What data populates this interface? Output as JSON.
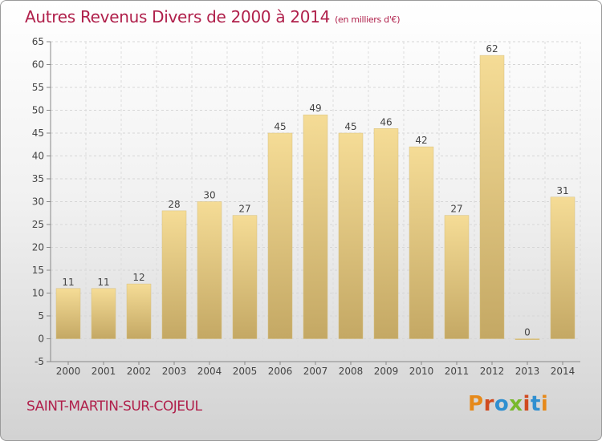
{
  "title": "Autres Revenus Divers de 2000 à 2014",
  "title_unit": "(en milliers d'€)",
  "commune": "SAINT-MARTIN-SUR-COJEUL",
  "logo_text": "Proxiti",
  "colors": {
    "title": "#b0204b",
    "bar_top": "#f5dc96",
    "bar_bottom": "#c4a864",
    "logo": [
      "#e6891a",
      "#d04a1f",
      "#2f8fd0",
      "#79b92c",
      "#d04a1f",
      "#2f8fd0",
      "#e6891a"
    ]
  },
  "chart_data": {
    "type": "bar",
    "categories": [
      "2000",
      "2001",
      "2002",
      "2003",
      "2004",
      "2005",
      "2006",
      "2007",
      "2008",
      "2009",
      "2010",
      "2011",
      "2012",
      "2013",
      "2014"
    ],
    "values": [
      11,
      11,
      12,
      28,
      30,
      27,
      45,
      49,
      45,
      46,
      42,
      27,
      62,
      0,
      31
    ],
    "ylim": [
      -5,
      65
    ],
    "yticks": [
      -5,
      0,
      5,
      10,
      15,
      20,
      25,
      30,
      35,
      40,
      45,
      50,
      55,
      60,
      65
    ],
    "grid": true,
    "data_labels": true
  }
}
